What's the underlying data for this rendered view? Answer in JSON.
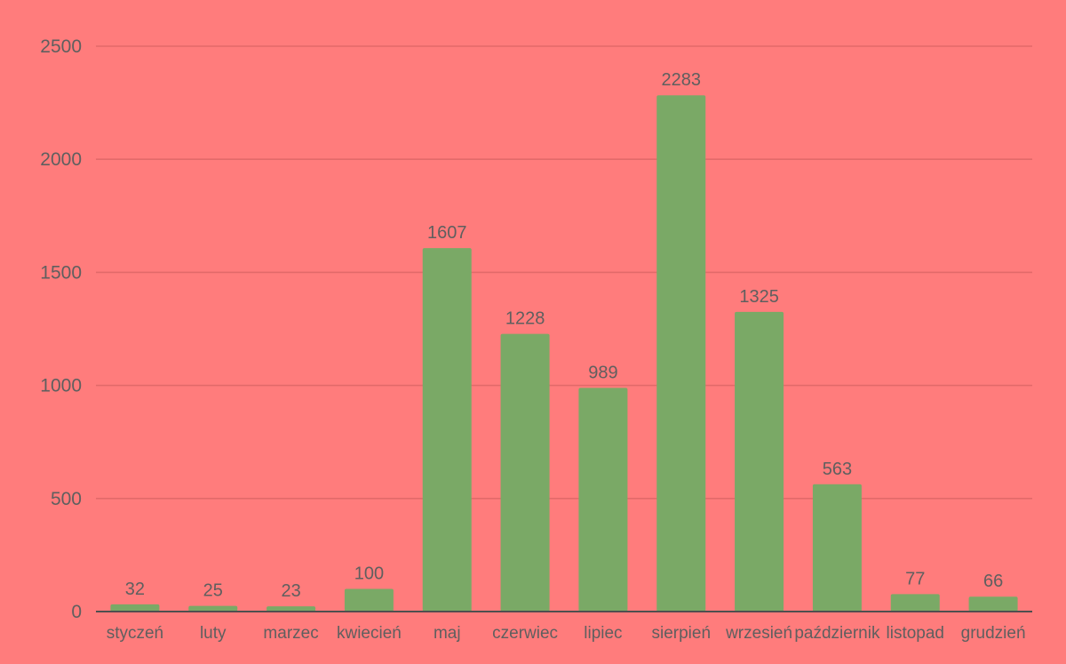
{
  "chart_data": {
    "type": "bar",
    "title": "",
    "xlabel": "",
    "ylabel": "",
    "categories": [
      "styczeń",
      "luty",
      "marzec",
      "kwiecień",
      "maj",
      "czerwiec",
      "lipiec",
      "sierpień",
      "wrzesień",
      "październik",
      "listopad",
      "grudzień"
    ],
    "values": [
      32,
      25,
      23,
      100,
      1607,
      1228,
      989,
      2283,
      1325,
      563,
      77,
      66
    ],
    "ylim": [
      0,
      2500
    ],
    "yticks": [
      0,
      500,
      1000,
      1500,
      2000,
      2500
    ],
    "grid": true,
    "legend": "none",
    "data_labels": true
  },
  "colors": {
    "background": "#ff7c7c",
    "bar": "#7aa966",
    "gridline": "#e26a6a",
    "axis": "#4f4f4f",
    "text": "#5f5f5f"
  }
}
